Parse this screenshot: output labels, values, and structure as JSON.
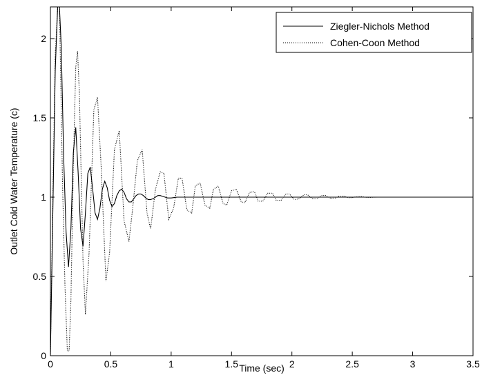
{
  "chart_data": {
    "type": "line",
    "title": "",
    "xlabel": "Time (sec)",
    "ylabel": "Outlet Cold Water Temperature (c)",
    "xlim": [
      0,
      3.5
    ],
    "ylim": [
      0,
      2.2
    ],
    "xticks": [
      0,
      0.5,
      1,
      1.5,
      2,
      2.5,
      3,
      3.5
    ],
    "xtick_labels": [
      "0",
      "0.5",
      "1",
      "1.5",
      "2",
      "2.5",
      "3",
      "3.5"
    ],
    "yticks": [
      0,
      0.5,
      1,
      1.5,
      2
    ],
    "ytick_labels": [
      "0",
      "0.5",
      "1",
      "1.5",
      "2"
    ],
    "grid": false,
    "legend_position": "top-right",
    "series": [
      {
        "name": "Ziegler-Nichols Method",
        "style": "solid",
        "color": "#000000",
        "x": [
          0,
          0.02,
          0.04,
          0.06,
          0.075,
          0.09,
          0.11,
          0.13,
          0.15,
          0.17,
          0.19,
          0.21,
          0.23,
          0.25,
          0.27,
          0.29,
          0.31,
          0.33,
          0.35,
          0.37,
          0.39,
          0.41,
          0.43,
          0.45,
          0.47,
          0.49,
          0.51,
          0.53,
          0.55,
          0.57,
          0.59,
          0.61,
          0.63,
          0.65,
          0.67,
          0.69,
          0.71,
          0.73,
          0.75,
          0.77,
          0.79,
          0.81,
          0.83,
          0.85,
          0.87,
          0.89,
          0.91,
          0.93,
          0.95,
          0.97,
          1.0,
          1.05,
          1.1,
          1.15,
          1.2,
          1.3,
          1.5,
          2.0,
          2.5,
          3.0,
          3.5
        ],
        "y": [
          0,
          0.9,
          1.8,
          2.2,
          2.2,
          1.95,
          1.25,
          0.78,
          0.56,
          0.8,
          1.28,
          1.44,
          1.15,
          0.8,
          0.69,
          0.9,
          1.15,
          1.19,
          1.05,
          0.9,
          0.86,
          0.93,
          1.05,
          1.1,
          1.06,
          0.98,
          0.94,
          0.96,
          1.01,
          1.04,
          1.05,
          1.03,
          0.99,
          0.97,
          0.97,
          0.99,
          1.01,
          1.02,
          1.02,
          1.01,
          0.995,
          0.985,
          0.985,
          0.99,
          1.0,
          1.01,
          1.01,
          1.005,
          1.0,
          0.995,
          0.995,
          1.0,
          1.0,
          1.0,
          1.0,
          1.0,
          1.0,
          1.0,
          1.0,
          1.0,
          1.0
        ]
      },
      {
        "name": "Cohen-Coon Method",
        "style": "dotted",
        "color": "#000000",
        "x": [
          0,
          0.02,
          0.04,
          0.06,
          0.075,
          0.09,
          0.1,
          0.12,
          0.14,
          0.155,
          0.17,
          0.19,
          0.21,
          0.225,
          0.24,
          0.27,
          0.29,
          0.32,
          0.36,
          0.39,
          0.42,
          0.46,
          0.49,
          0.53,
          0.57,
          0.61,
          0.65,
          0.68,
          0.72,
          0.76,
          0.8,
          0.83,
          0.87,
          0.91,
          0.94,
          0.98,
          1.02,
          1.06,
          1.09,
          1.13,
          1.17,
          1.2,
          1.24,
          1.28,
          1.32,
          1.35,
          1.39,
          1.43,
          1.46,
          1.5,
          1.54,
          1.58,
          1.61,
          1.65,
          1.69,
          1.72,
          1.76,
          1.8,
          1.84,
          1.87,
          1.91,
          1.95,
          1.98,
          2.02,
          2.06,
          2.1,
          2.13,
          2.17,
          2.21,
          2.24,
          2.28,
          2.32,
          2.36,
          2.39,
          2.43,
          2.47,
          2.5,
          2.54,
          2.58,
          2.62,
          2.7,
          2.8,
          3.0,
          3.5
        ],
        "y": [
          0,
          1.0,
          1.9,
          2.2,
          2.2,
          1.55,
          1.1,
          0.45,
          0.03,
          0.03,
          0.35,
          1.2,
          1.82,
          1.92,
          1.65,
          0.6,
          0.26,
          0.65,
          1.55,
          1.63,
          1.2,
          0.47,
          0.65,
          1.3,
          1.42,
          0.85,
          0.72,
          0.92,
          1.23,
          1.3,
          0.9,
          0.8,
          1.05,
          1.16,
          1.15,
          0.86,
          0.93,
          1.12,
          1.12,
          0.92,
          0.9,
          1.07,
          1.09,
          0.95,
          0.93,
          1.05,
          1.07,
          0.96,
          0.95,
          1.04,
          1.05,
          0.97,
          0.965,
          1.03,
          1.035,
          0.975,
          0.975,
          1.025,
          1.025,
          0.98,
          0.98,
          1.02,
          1.02,
          0.985,
          0.99,
          1.015,
          1.015,
          0.99,
          0.99,
          1.01,
          1.01,
          0.993,
          0.994,
          1.006,
          1.006,
          0.996,
          0.997,
          1.004,
          1.003,
          0.998,
          1.0,
          1.0,
          1.0,
          1.0
        ]
      }
    ]
  }
}
